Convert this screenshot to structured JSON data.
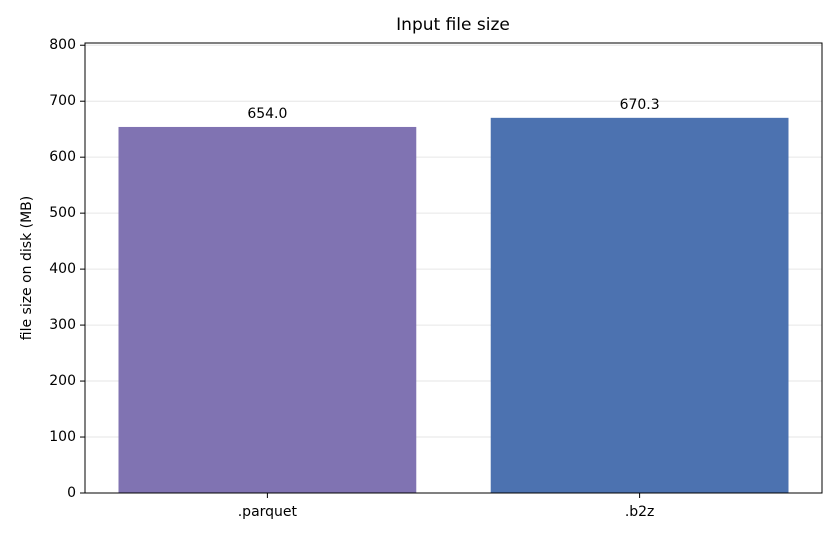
{
  "chart_data": {
    "type": "bar",
    "title": "Input file size",
    "ylabel": "file size on disk (MB)",
    "categories": [
      ".parquet",
      ".b2z"
    ],
    "values": [
      654.0,
      670.3
    ],
    "value_labels": [
      "654.0",
      "670.3"
    ],
    "colors": [
      "#8073b2",
      "#4c72b0"
    ],
    "ylim": [
      0,
      804
    ],
    "yticks": [
      0,
      100,
      200,
      300,
      400,
      500,
      600,
      700,
      800
    ],
    "grid": true
  }
}
